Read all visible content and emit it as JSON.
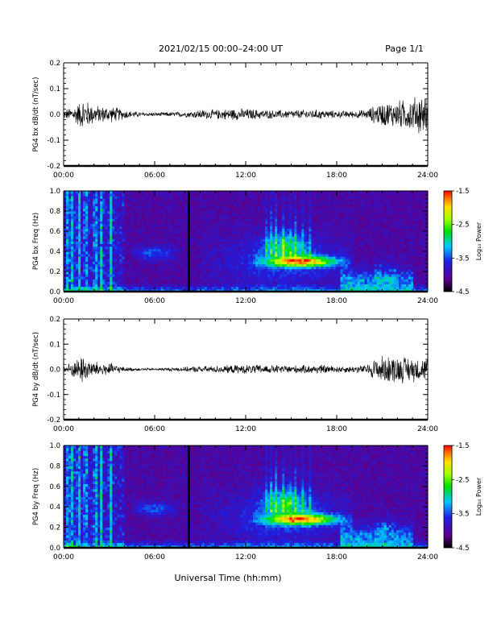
{
  "header": {
    "title": "2021/02/15  00:00–24:00 UT",
    "page": "Page 1/1"
  },
  "footer": {
    "xlabel": "Universal Time (hh:mm)"
  },
  "chart_data": [
    {
      "type": "line",
      "id": "bx-dbdt",
      "ylabel": "PG4 bx dB/dt (nT/sec)",
      "xlim": [
        0,
        24
      ],
      "ylim": [
        -0.2,
        0.2
      ],
      "xticks": [
        "00:00",
        "06:00",
        "12:00",
        "18:00",
        "24:00"
      ],
      "yticks": [
        -0.2,
        -0.1,
        0.0,
        0.1,
        0.2
      ],
      "yticklabels": [
        "-0.2",
        "-0.1",
        "0.0",
        "0.1",
        "0.2"
      ],
      "envelope": {
        "x": [
          0,
          0.5,
          1.0,
          1.3,
          1.5,
          2.0,
          2.5,
          3.0,
          3.5,
          4.0,
          5.0,
          6.0,
          7.0,
          8.0,
          8.5,
          9.0,
          10.0,
          11.0,
          12.0,
          13.0,
          14.0,
          15.0,
          16.0,
          17.0,
          18.0,
          19.0,
          20.0,
          20.5,
          21.0,
          22.0,
          23.0,
          23.5,
          24.0
        ],
        "amplitude": [
          0.02,
          0.03,
          0.05,
          0.07,
          0.06,
          0.04,
          0.035,
          0.035,
          0.03,
          0.02,
          0.01,
          0.008,
          0.01,
          0.012,
          0.015,
          0.02,
          0.02,
          0.025,
          0.025,
          0.02,
          0.018,
          0.018,
          0.02,
          0.02,
          0.015,
          0.015,
          0.02,
          0.04,
          0.05,
          0.06,
          0.07,
          0.09,
          0.07
        ]
      }
    },
    {
      "type": "heatmap",
      "id": "bx-spectrogram",
      "ylabel": "PG4 bx Freq (Hz)",
      "xlim": [
        0,
        24
      ],
      "ylim": [
        0.0,
        1.0
      ],
      "xticks": [
        "00:00",
        "06:00",
        "12:00",
        "18:00",
        "24:00"
      ],
      "yticks": [
        0.0,
        0.2,
        0.4,
        0.6,
        0.8,
        1.0
      ],
      "yticklabels": [
        "0.0",
        "0.2",
        "0.4",
        "0.6",
        "0.8",
        "1.0"
      ],
      "colorbar": {
        "label": "Log₁₀ Power",
        "range": [
          -4.5,
          -1.5
        ],
        "ticks": [
          "-1.5",
          "-2.5",
          "-3.5",
          "-4.5"
        ]
      },
      "features": {
        "hot_band_freq": 0.3,
        "hot_band_start": 14.0,
        "hot_band_end": 17.5,
        "data_gap": 8.25
      }
    },
    {
      "type": "line",
      "id": "by-dbdt",
      "ylabel": "PG4 by dB/dt (nT/sec)",
      "xlim": [
        0,
        24
      ],
      "ylim": [
        -0.2,
        0.2
      ],
      "xticks": [
        "00:00",
        "06:00",
        "12:00",
        "18:00",
        "24:00"
      ],
      "yticks": [
        -0.2,
        -0.1,
        0.0,
        0.1,
        0.2
      ],
      "yticklabels": [
        "-0.2",
        "-0.1",
        "0.0",
        "0.1",
        "0.2"
      ],
      "envelope": {
        "x": [
          0,
          0.5,
          1.0,
          1.3,
          1.5,
          2.0,
          2.5,
          3.0,
          3.5,
          4.0,
          5.0,
          6.0,
          7.0,
          8.0,
          8.5,
          9.0,
          10.0,
          11.0,
          12.0,
          13.0,
          14.0,
          15.0,
          16.0,
          17.0,
          18.0,
          19.0,
          20.0,
          20.5,
          21.0,
          22.0,
          23.0,
          23.5,
          24.0
        ],
        "amplitude": [
          0.02,
          0.03,
          0.05,
          0.07,
          0.05,
          0.035,
          0.03,
          0.03,
          0.02,
          0.01,
          0.006,
          0.005,
          0.008,
          0.01,
          0.012,
          0.015,
          0.015,
          0.018,
          0.02,
          0.02,
          0.018,
          0.018,
          0.018,
          0.02,
          0.015,
          0.015,
          0.02,
          0.05,
          0.06,
          0.06,
          0.055,
          0.05,
          0.05
        ]
      }
    },
    {
      "type": "heatmap",
      "id": "by-spectrogram",
      "ylabel": "PG4 by Freq (Hz)",
      "xlim": [
        0,
        24
      ],
      "ylim": [
        0.0,
        1.0
      ],
      "xticks": [
        "00:00",
        "06:00",
        "12:00",
        "18:00",
        "24:00"
      ],
      "yticks": [
        0.0,
        0.2,
        0.4,
        0.6,
        0.8,
        1.0
      ],
      "yticklabels": [
        "0.0",
        "0.2",
        "0.4",
        "0.6",
        "0.8",
        "1.0"
      ],
      "colorbar": {
        "label": "Log₁₀ Power",
        "range": [
          -4.5,
          -1.5
        ],
        "ticks": [
          "-1.5",
          "-2.5",
          "-3.5",
          "-4.5"
        ]
      },
      "features": {
        "hot_band_freq": 0.28,
        "hot_band_start": 14.0,
        "hot_band_end": 17.5,
        "data_gap": 8.25
      }
    }
  ]
}
